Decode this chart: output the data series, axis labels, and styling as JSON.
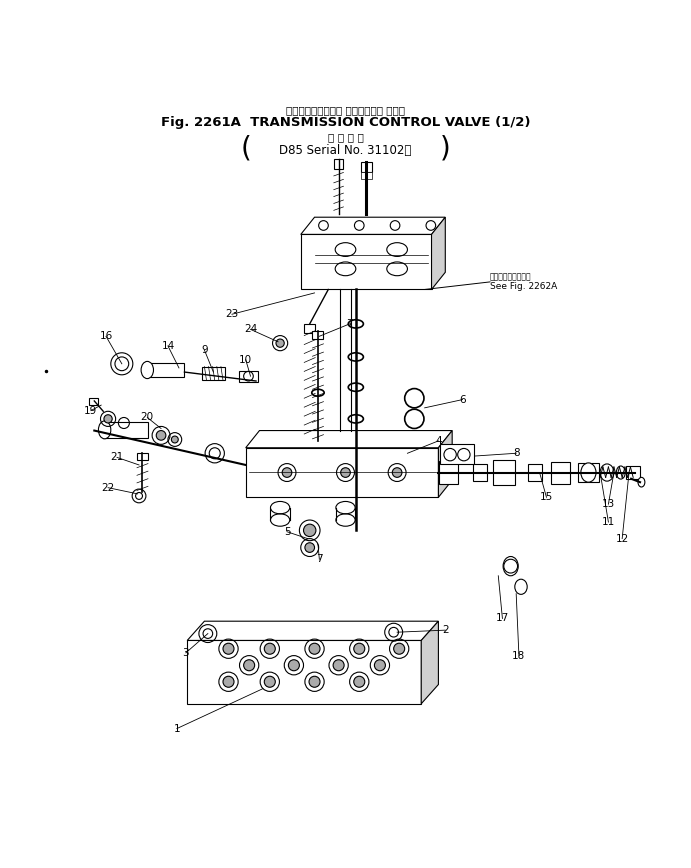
{
  "title_line1": "トランスミッション コントロール バルブ",
  "title_line2": "Fig. 2261A  TRANSMISSION CONTROL VALVE (1/2)",
  "subtitle_line1": "適 用 号 機",
  "subtitle_line2": "D85 Serial No. 31102～",
  "see_fig_line1": "第２２６２Ａ図参照",
  "see_fig_line2": "See Fig. 2262A",
  "bg_color": "#ffffff",
  "fig_width": 6.91,
  "fig_height": 8.68
}
